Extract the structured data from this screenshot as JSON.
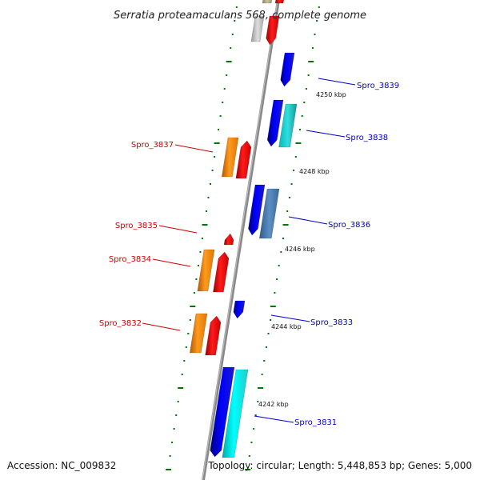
{
  "title": "Serratia proteamaculans 568, complete genome",
  "footer": {
    "accession": "Accession: NC_009832",
    "topology": "Topology: circular; Length: 5,448,853 bp; Genes: 5,000"
  },
  "colors": {
    "forward_label": "#0000cc",
    "reverse_label": "#cc0000",
    "tick": "#007700",
    "backbone": "#888888"
  },
  "scale_labels": [
    "4250 kbp",
    "4248 kbp",
    "4246 kbp",
    "4244 kbp",
    "4242 kbp"
  ],
  "gene_labels": {
    "forward": [
      "Spro_3839",
      "Spro_3838",
      "Spro_3836",
      "Spro_3833",
      "Spro_3831"
    ],
    "reverse": [
      "Spro_3837",
      "Spro_3835",
      "Spro_3834",
      "Spro_3832"
    ]
  }
}
